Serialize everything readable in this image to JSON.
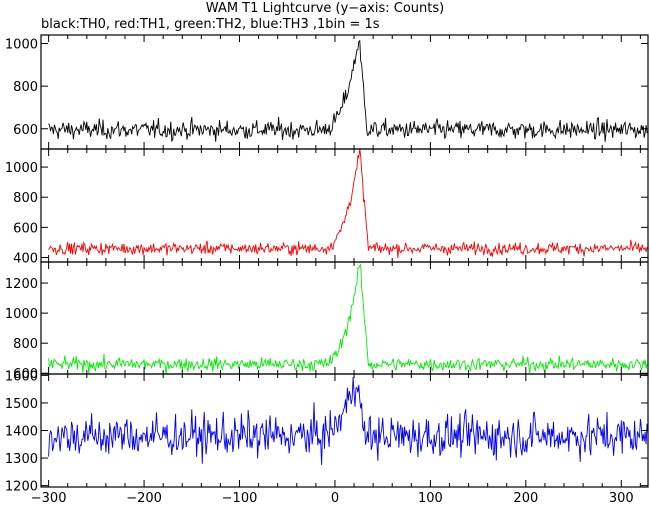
{
  "title": "WAM T1 Lightcurve (y−axis: Counts)",
  "subtitle": "black:TH0, red:TH1, green:TH2, blue:TH3 ,1bin = 1s",
  "chart_data": [
    {
      "type": "line",
      "series": [
        {
          "name": "TH0",
          "color": "#000000",
          "baseline": 595,
          "noise": 22,
          "peak": 1020,
          "peak_x": 25
        }
      ],
      "x_range": [
        -300,
        330
      ],
      "ylim": [
        505,
        1040
      ],
      "yticks": [
        "600",
        "800",
        "1000"
      ],
      "ytick_values": [
        600,
        800,
        1000
      ],
      "grid": false
    },
    {
      "type": "line",
      "series": [
        {
          "name": "TH1",
          "color": "#ff0000",
          "baseline": 460,
          "noise": 20,
          "peak": 1110,
          "peak_x": 26
        }
      ],
      "x_range": [
        -300,
        330
      ],
      "ylim": [
        370,
        1120
      ],
      "yticks": [
        "400",
        "600",
        "800",
        "1000"
      ],
      "ytick_values": [
        400,
        600,
        800,
        1000
      ],
      "grid": false
    },
    {
      "type": "line",
      "series": [
        {
          "name": "TH2",
          "color": "#00ee00",
          "baseline": 660,
          "noise": 22,
          "peak": 1330,
          "peak_x": 26
        }
      ],
      "x_range": [
        -300,
        330
      ],
      "ylim": [
        595,
        1340
      ],
      "yticks": [
        "600",
        "800",
        "1000",
        "1200"
      ],
      "ytick_values": [
        600,
        800,
        1000,
        1200
      ],
      "grid": false
    },
    {
      "type": "line",
      "series": [
        {
          "name": "TH3",
          "color": "#0000ee",
          "baseline": 1380,
          "noise": 38,
          "peak": 1600,
          "peak_x": 22
        }
      ],
      "x_range": [
        -300,
        330
      ],
      "ylim": [
        1195,
        1605
      ],
      "yticks": [
        "1200",
        "1300",
        "1400",
        "1500",
        "1600"
      ],
      "ytick_values": [
        1200,
        1300,
        1400,
        1500,
        1600
      ],
      "xticks": [
        "−300",
        "−200",
        "−100",
        "0",
        "100",
        "200",
        "300"
      ],
      "xtick_values": [
        -300,
        -200,
        -100,
        0,
        100,
        200,
        300
      ],
      "grid": false
    }
  ]
}
